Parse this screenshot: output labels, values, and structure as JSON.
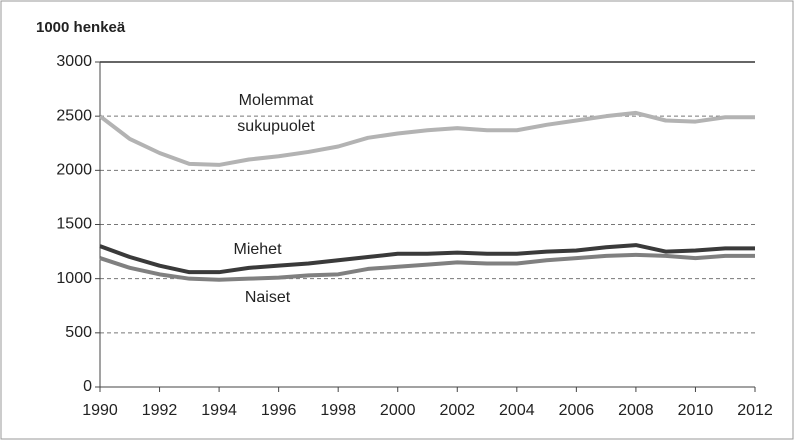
{
  "chart_data": {
    "type": "line",
    "y_label": "1000 henkeä",
    "x": [
      1990,
      1991,
      1992,
      1993,
      1994,
      1995,
      1996,
      1997,
      1998,
      1999,
      2000,
      2001,
      2002,
      2003,
      2004,
      2005,
      2006,
      2007,
      2008,
      2009,
      2010,
      2011,
      2012
    ],
    "series": [
      {
        "name": "Molemmat sukupuolet",
        "color": "#b3b3b3",
        "values": [
          2500,
          2290,
          2160,
          2060,
          2050,
          2100,
          2130,
          2170,
          2220,
          2300,
          2340,
          2370,
          2390,
          2370,
          2370,
          2420,
          2460,
          2500,
          2530,
          2460,
          2450,
          2490,
          2490
        ]
      },
      {
        "name": "Miehet",
        "color": "#3a3a3a",
        "values": [
          1300,
          1200,
          1120,
          1060,
          1060,
          1100,
          1120,
          1140,
          1170,
          1200,
          1230,
          1230,
          1240,
          1230,
          1230,
          1250,
          1260,
          1290,
          1310,
          1250,
          1260,
          1280,
          1280
        ]
      },
      {
        "name": "Naiset",
        "color": "#808080",
        "values": [
          1190,
          1100,
          1040,
          1000,
          990,
          1000,
          1010,
          1030,
          1040,
          1090,
          1110,
          1130,
          1150,
          1140,
          1140,
          1170,
          1190,
          1210,
          1220,
          1210,
          1190,
          1210,
          1210
        ]
      }
    ],
    "xlim": [
      1990,
      2012
    ],
    "xticks": [
      1990,
      1992,
      1994,
      1996,
      1998,
      2000,
      2002,
      2004,
      2006,
      2008,
      2010,
      2012
    ],
    "ylim": [
      0,
      3000
    ],
    "yticks": [
      0,
      500,
      1000,
      1500,
      2000,
      2500,
      3000
    ],
    "grid": true
  }
}
